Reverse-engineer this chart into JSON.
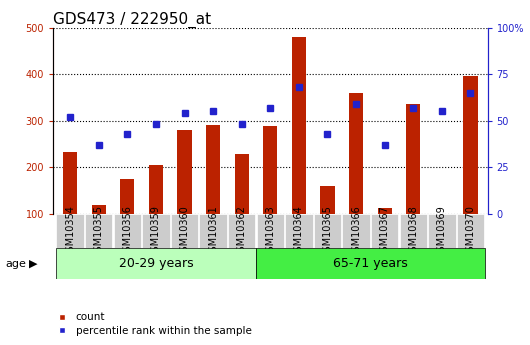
{
  "title": "GDS473 / 222950_at",
  "categories": [
    "GSM10354",
    "GSM10355",
    "GSM10356",
    "GSM10359",
    "GSM10360",
    "GSM10361",
    "GSM10362",
    "GSM10363",
    "GSM10364",
    "GSM10365",
    "GSM10366",
    "GSM10367",
    "GSM10368",
    "GSM10369",
    "GSM10370"
  ],
  "count_values": [
    232,
    120,
    175,
    205,
    280,
    290,
    228,
    288,
    480,
    160,
    360,
    113,
    337,
    100,
    397
  ],
  "percentile_values": [
    52,
    37,
    43,
    48,
    54,
    55,
    48,
    57,
    68,
    43,
    59,
    37,
    57,
    55,
    65
  ],
  "group1_label": "20-29 years",
  "group1_count": 7,
  "group2_label": "65-71 years",
  "group2_count": 8,
  "age_label": "age",
  "legend1": "count",
  "legend2": "percentile rank within the sample",
  "bar_color": "#bb2200",
  "dot_color": "#2222cc",
  "ylim_left": [
    100,
    500
  ],
  "ylim_right": [
    0,
    100
  ],
  "yticks_left": [
    100,
    200,
    300,
    400,
    500
  ],
  "yticks_right": [
    0,
    25,
    50,
    75,
    100
  ],
  "bg_plot": "#ffffff",
  "bg_xtick": "#cccccc",
  "bg_group1": "#bbffbb",
  "bg_group2": "#44ee44",
  "title_fontsize": 11,
  "tick_fontsize": 7,
  "bar_width": 0.5
}
